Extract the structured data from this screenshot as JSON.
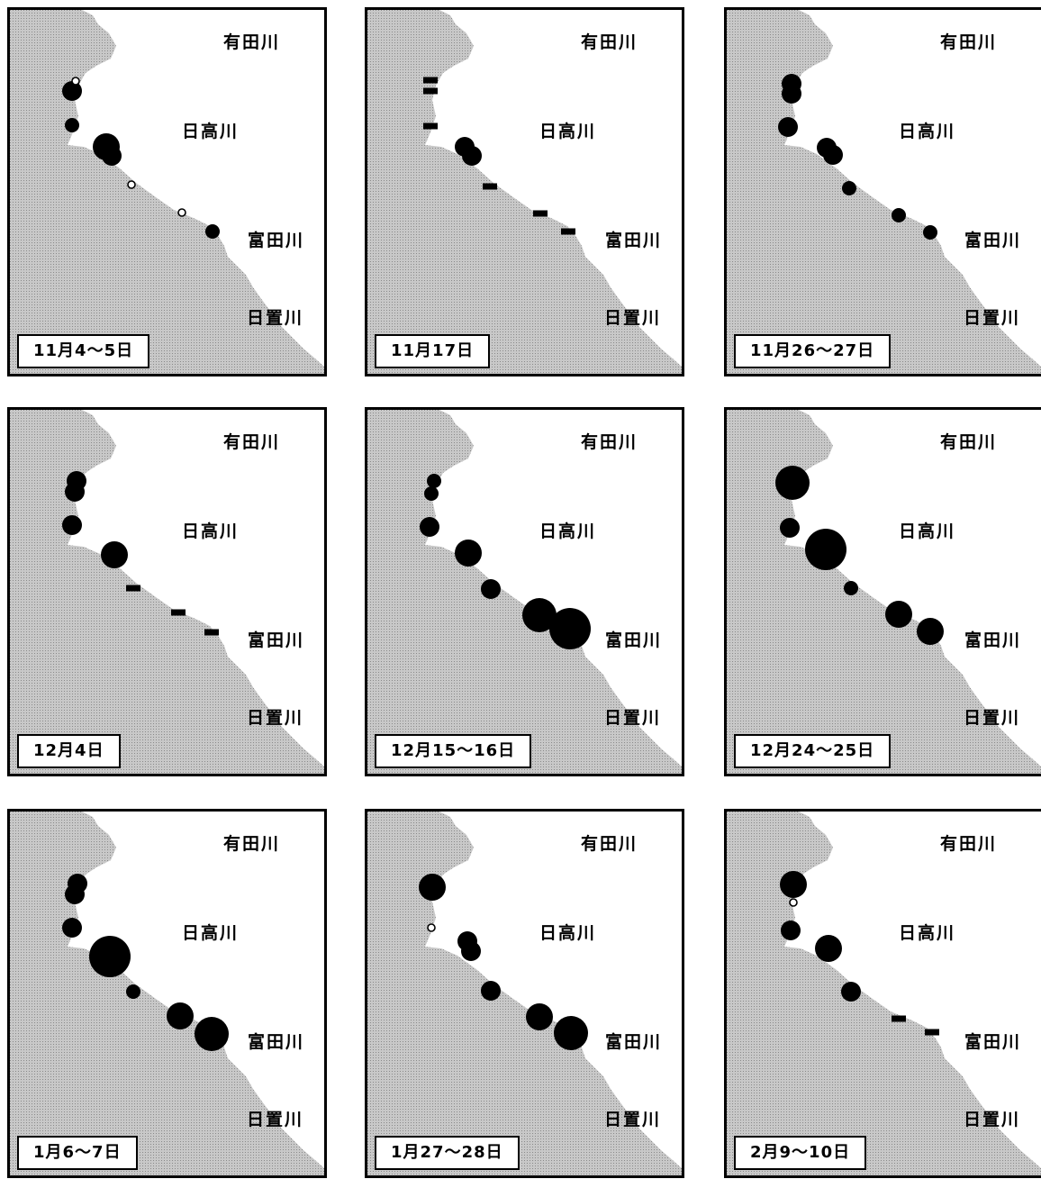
{
  "rivers": {
    "arida": "有田川",
    "hidaka": "日高川",
    "tonda": "富田川",
    "hiki": "日置川"
  },
  "colors": {
    "land": "#c8c8c8",
    "sea": "#ffffff",
    "marker": "#000000"
  },
  "panels": [
    {
      "date": "11月4～5日",
      "markers": [
        {
          "type": "circle",
          "size": "medium"
        },
        {
          "type": "open",
          "size": "tiny"
        },
        {
          "type": "circle",
          "size": "small"
        },
        {
          "type": "circle",
          "size": "large"
        },
        {
          "type": "circle",
          "size": "medium"
        },
        {
          "type": "open",
          "size": "tiny"
        },
        {
          "type": "open",
          "size": "tiny"
        },
        {
          "type": "circle",
          "size": "small"
        }
      ]
    },
    {
      "date": "11月17日",
      "markers": [
        {
          "type": "bar"
        },
        {
          "type": "bar"
        },
        {
          "type": "bar"
        },
        {
          "type": "circle",
          "size": "medium"
        },
        {
          "type": "circle",
          "size": "medium"
        },
        {
          "type": "bar"
        },
        {
          "type": "bar"
        },
        {
          "type": "bar"
        }
      ]
    },
    {
      "date": "11月26～27日",
      "markers": [
        {
          "type": "circle",
          "size": "medium"
        },
        {
          "type": "circle",
          "size": "medium"
        },
        {
          "type": "circle",
          "size": "medium"
        },
        {
          "type": "circle",
          "size": "medium"
        },
        {
          "type": "circle",
          "size": "medium"
        },
        {
          "type": "circle",
          "size": "small"
        },
        {
          "type": "circle",
          "size": "small"
        },
        {
          "type": "circle",
          "size": "small"
        }
      ]
    },
    {
      "date": "12月4日",
      "markers": [
        {
          "type": "circle",
          "size": "medium"
        },
        {
          "type": "circle",
          "size": "medium"
        },
        {
          "type": "circle",
          "size": "medium"
        },
        {
          "type": "circle",
          "size": "large"
        },
        {
          "type": "bar"
        },
        {
          "type": "bar"
        },
        {
          "type": "bar"
        }
      ]
    },
    {
      "date": "12月15～16日",
      "markers": [
        {
          "type": "circle",
          "size": "small"
        },
        {
          "type": "circle",
          "size": "small"
        },
        {
          "type": "circle",
          "size": "medium"
        },
        {
          "type": "circle",
          "size": "large"
        },
        {
          "type": "circle",
          "size": "medium"
        },
        {
          "type": "circle",
          "size": "xlarge"
        },
        {
          "type": "circle",
          "size": "xxlarge"
        }
      ]
    },
    {
      "date": "12月24～25日",
      "markers": [
        {
          "type": "circle",
          "size": "xlarge"
        },
        {
          "type": "circle",
          "size": "medium"
        },
        {
          "type": "circle",
          "size": "xxlarge"
        },
        {
          "type": "circle",
          "size": "small"
        },
        {
          "type": "circle",
          "size": "large"
        },
        {
          "type": "circle",
          "size": "large"
        }
      ]
    },
    {
      "date": "1月6～7日",
      "markers": [
        {
          "type": "circle",
          "size": "medium"
        },
        {
          "type": "circle",
          "size": "medium"
        },
        {
          "type": "circle",
          "size": "medium"
        },
        {
          "type": "circle",
          "size": "xxlarge"
        },
        {
          "type": "circle",
          "size": "small"
        },
        {
          "type": "circle",
          "size": "large"
        },
        {
          "type": "circle",
          "size": "xlarge"
        }
      ]
    },
    {
      "date": "1月27～28日",
      "markers": [
        {
          "type": "circle",
          "size": "large"
        },
        {
          "type": "open",
          "size": "tiny"
        },
        {
          "type": "circle",
          "size": "medium"
        },
        {
          "type": "circle",
          "size": "medium"
        },
        {
          "type": "circle",
          "size": "medium"
        },
        {
          "type": "circle",
          "size": "large"
        },
        {
          "type": "circle",
          "size": "xlarge"
        }
      ]
    },
    {
      "date": "2月9～10日",
      "markers": [
        {
          "type": "circle",
          "size": "large"
        },
        {
          "type": "open",
          "size": "tiny"
        },
        {
          "type": "circle",
          "size": "medium"
        },
        {
          "type": "circle",
          "size": "large"
        },
        {
          "type": "circle",
          "size": "medium"
        },
        {
          "type": "bar"
        },
        {
          "type": "bar"
        }
      ]
    }
  ]
}
